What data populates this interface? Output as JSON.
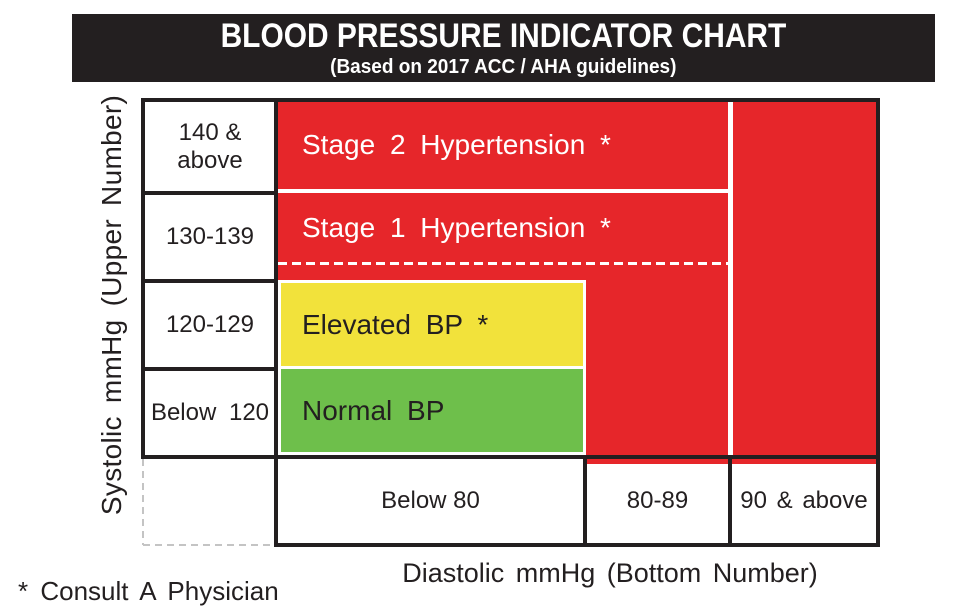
{
  "colors": {
    "banner_background": "#231f20",
    "grid_black": "#231f20",
    "hypertension_red": "#e6262a",
    "elevated_yellow": "#f2e23b",
    "normal_green": "#6ebf4b",
    "divider_white": "#ffffff",
    "dashed_guide_gray": "#c4c4c4"
  },
  "chart_data": {
    "type": "heatmap",
    "title": "BLOOD PRESSURE INDICATOR CHART",
    "subtitle": "(Based on 2017 ACC / AHA guidelines)",
    "x_axis": {
      "label": "Diastolic mmHg (Bottom Number)",
      "categories": [
        "Below 80",
        "80-89",
        "90 & above"
      ]
    },
    "y_axis": {
      "label": "Systolic mmHg (Upper Number)",
      "categories": [
        "140 & above",
        "130-139",
        "120-129",
        "Below 120"
      ]
    },
    "zones": [
      {
        "name": "Stage 2 Hypertension *",
        "color": "#e6262a",
        "systolic": "140 & above",
        "diastolic": "90 & above",
        "consult_physician": true
      },
      {
        "name": "Stage 1 Hypertension *",
        "color": "#e6262a",
        "systolic": "130-139",
        "diastolic": "80-89",
        "consult_physician": true
      },
      {
        "name": "Elevated BP *",
        "color": "#f2e23b",
        "systolic": "120-129",
        "diastolic": "Below 80",
        "consult_physician": true
      },
      {
        "name": "Normal BP",
        "color": "#6ebf4b",
        "systolic": "Below 120",
        "diastolic": "Below 80",
        "consult_physician": false
      }
    ],
    "footnote": "* Consult A Physician",
    "legend": "none",
    "grid": true
  }
}
